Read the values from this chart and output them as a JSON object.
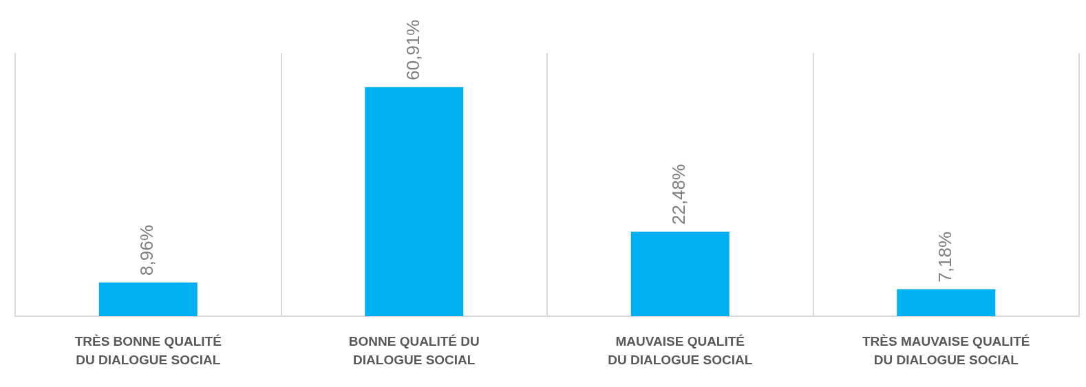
{
  "chart_data": {
    "type": "bar",
    "categories": [
      "TRÈS BONNE QUALITÉ DU DIALOGUE SOCIAL",
      "BONNE QUALITÉ DU DIALOGUE SOCIAL",
      "MAUVAISE QUALITÉ DU DIALOGUE SOCIAL",
      "TRÈS MAUVAISE QUALITÉ DU DIALOGUE SOCIAL"
    ],
    "values": [
      8.96,
      60.91,
      22.48,
      7.18
    ],
    "value_labels": [
      "8,96%",
      "60,91%",
      "22,48%",
      "7,18%"
    ],
    "color": "#00b0f0",
    "grid": "x",
    "legend": false,
    "tick_labels": "x"
  }
}
